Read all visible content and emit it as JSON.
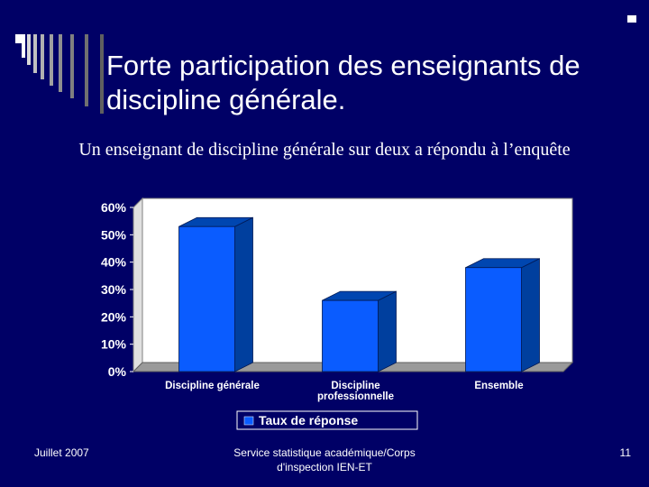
{
  "slide": {
    "title": "Forte participation des enseignants de discipline générale.",
    "subtitle": "Un enseignant de discipline générale sur deux a répondu à l’enquête"
  },
  "chart_data": {
    "type": "bar",
    "categories": [
      "Discipline générale",
      "Discipline professionnelle",
      "Ensemble"
    ],
    "series": [
      {
        "name": "Taux de réponse",
        "values": [
          53,
          26,
          38
        ]
      }
    ],
    "ylim": [
      0,
      60
    ],
    "yticks": [
      "0%",
      "10%",
      "20%",
      "30%",
      "40%",
      "50%",
      "60%"
    ],
    "legend": "bottom",
    "colors": {
      "bar_front": "#0a5cff",
      "bar_side": "#003f9e",
      "bar_top": "#0046b0",
      "plot_bg": "#ffffff",
      "floor": "#9a9a9a"
    }
  },
  "footer": {
    "date": "Juillet 2007",
    "source_line1": "Service statistique académique/Corps",
    "source_line2": "d'inspection IEN-ET",
    "page": "11"
  }
}
